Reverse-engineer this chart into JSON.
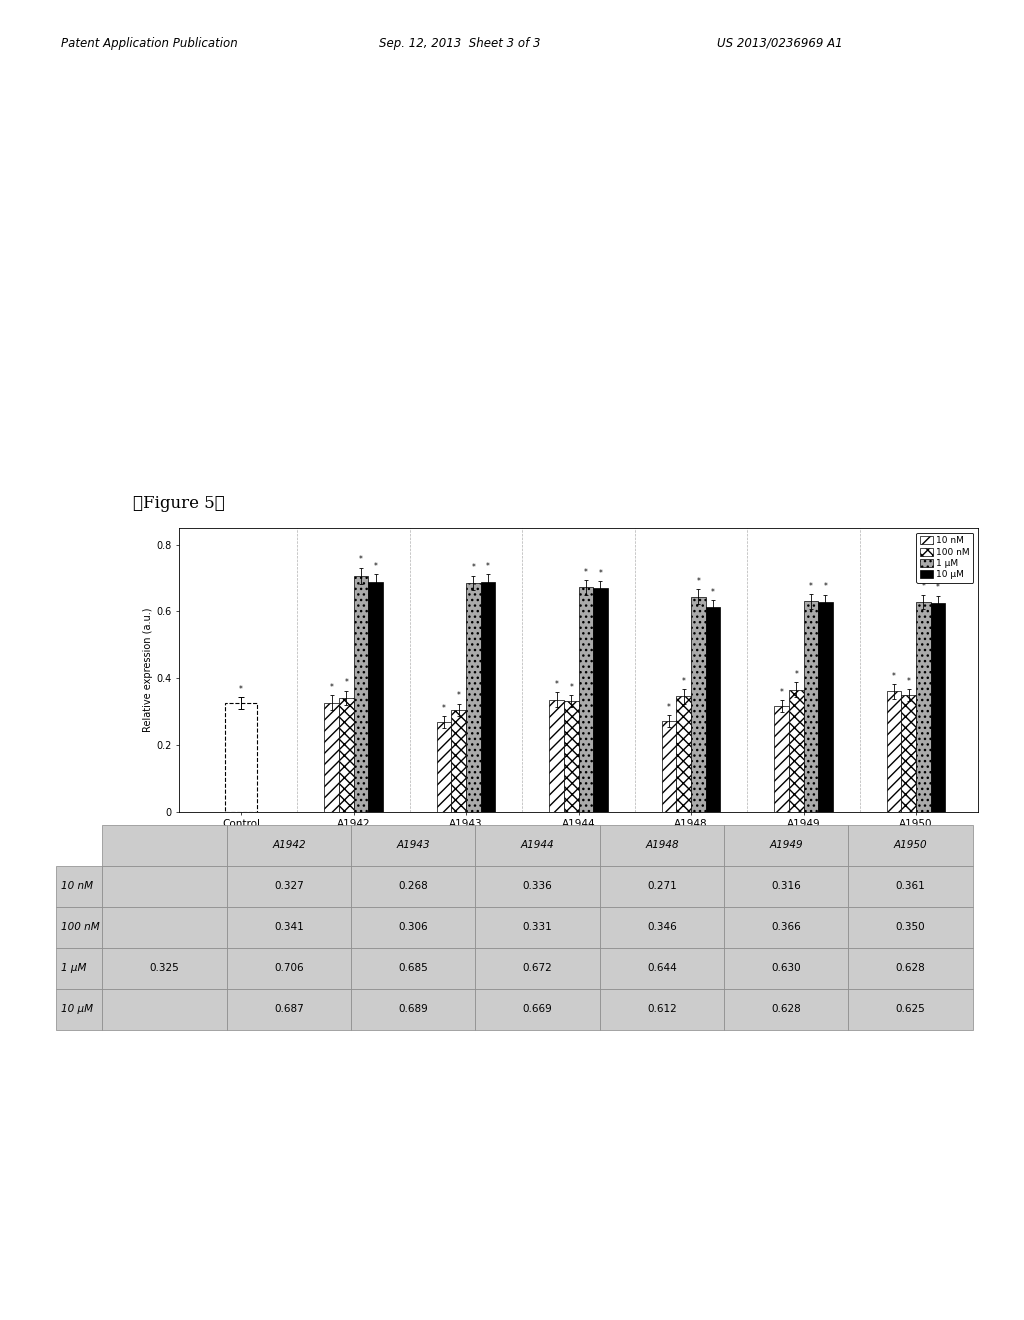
{
  "figure_label": "「Figure 5」",
  "groups": [
    "Control",
    "A1942",
    "A1943",
    "A1944",
    "A1948",
    "A1949",
    "A1950"
  ],
  "doses": [
    "10 nM",
    "100 nM",
    "1 μM",
    "10 μM"
  ],
  "values": {
    "Control": [
      0.325,
      0.325,
      0.325,
      0.325
    ],
    "A1942": [
      0.327,
      0.341,
      0.706,
      0.687
    ],
    "A1943": [
      0.268,
      0.306,
      0.685,
      0.689
    ],
    "A1944": [
      0.336,
      0.331,
      0.672,
      0.669
    ],
    "A1948": [
      0.271,
      0.346,
      0.644,
      0.612
    ],
    "A1949": [
      0.316,
      0.366,
      0.63,
      0.628
    ],
    "A1950": [
      0.361,
      0.35,
      0.628,
      0.625
    ]
  },
  "errors": {
    "Control": [
      0.018,
      0.018,
      0.018,
      0.018
    ],
    "A1942": [
      0.022,
      0.022,
      0.025,
      0.025
    ],
    "A1943": [
      0.018,
      0.018,
      0.022,
      0.022
    ],
    "A1944": [
      0.022,
      0.018,
      0.022,
      0.022
    ],
    "A1948": [
      0.018,
      0.022,
      0.022,
      0.022
    ],
    "A1949": [
      0.018,
      0.022,
      0.022,
      0.022
    ],
    "A1950": [
      0.022,
      0.018,
      0.022,
      0.022
    ]
  },
  "ylabel": "Relative expression (a.u.)",
  "ylim": [
    0,
    0.85
  ],
  "yticks": [
    0,
    0.2,
    0.4,
    0.6,
    0.8
  ],
  "bar_width": 0.13,
  "hatch_patterns": [
    "///",
    "xxx",
    "...",
    ""
  ],
  "bar_colors": [
    "white",
    "white",
    "#aaaaaa",
    "black"
  ],
  "legend_labels": [
    "10 nM",
    "100 nM",
    "1 μM",
    "10 μM"
  ],
  "table_row_labels": [
    "10 nM",
    "100 nM",
    "1 μM",
    "10 μM"
  ],
  "table_col_labels": [
    "",
    "A1942",
    "A1943",
    "A1944",
    "A1948",
    "A1949",
    "A1950"
  ],
  "table_control_col": [
    "",
    "",
    "0.325",
    ""
  ],
  "table_values": [
    [
      0.327,
      0.268,
      0.336,
      0.271,
      0.316,
      0.361
    ],
    [
      0.341,
      0.306,
      0.331,
      0.346,
      0.366,
      0.35
    ],
    [
      0.706,
      0.685,
      0.672,
      0.644,
      0.63,
      0.628
    ],
    [
      0.687,
      0.689,
      0.669,
      0.612,
      0.628,
      0.625
    ]
  ],
  "bg_color": "#cccccc"
}
